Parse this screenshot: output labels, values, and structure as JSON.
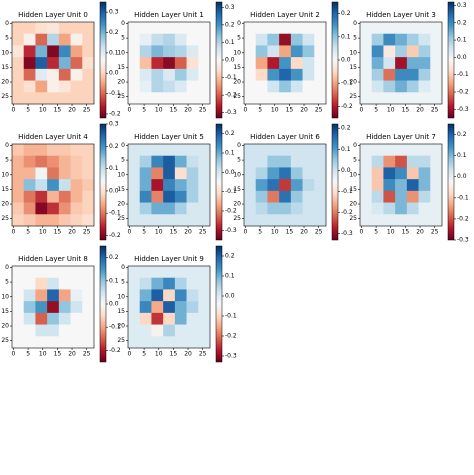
{
  "chart_data": [
    {
      "type": "heatmap",
      "title": "Hidden Layer Unit 0",
      "xlim": [
        -0.5,
        27.5
      ],
      "ylim": [
        27.5,
        -0.5
      ],
      "xticks": [
        0,
        5,
        10,
        15,
        20,
        25
      ],
      "yticks": [
        0,
        5,
        10,
        15,
        20,
        25
      ],
      "clim": [
        -0.22,
        0.35
      ],
      "cticks": [
        -0.2,
        -0.1,
        {
          "value": 0,
          "label": "0.0"
        },
        0.1,
        0.2,
        0.3
      ],
      "colormap": [
        "#67001f",
        "#b2182b",
        "#d6604d",
        "#f4a582",
        "#fddbc7",
        "#f7f7f7",
        "#d1e5f0",
        "#92c5de",
        "#4393c3",
        "#2166ac",
        "#053061"
      ],
      "values": [
        [
          0,
          0,
          0.02,
          0.03,
          0,
          0,
          0
        ],
        [
          0,
          0.05,
          -0.1,
          0.15,
          -0.05,
          0.05,
          0
        ],
        [
          0.03,
          -0.15,
          0.2,
          -0.2,
          0.25,
          -0.05,
          0
        ],
        [
          0,
          -0.2,
          0.3,
          -0.15,
          0.2,
          -0.1,
          0.02
        ],
        [
          0,
          -0.1,
          0.1,
          0.05,
          -0.1,
          0.05,
          0
        ],
        [
          0,
          0.02,
          -0.05,
          0.05,
          0.03,
          0,
          0
        ],
        [
          0,
          0,
          0,
          0,
          0,
          0,
          0
        ]
      ]
    },
    {
      "type": "heatmap",
      "title": "Hidden Layer Unit 1",
      "xlim": [
        -0.5,
        27.5
      ],
      "ylim": [
        27.5,
        -0.5
      ],
      "xticks": [
        0,
        5,
        10,
        15,
        20,
        25
      ],
      "yticks": [
        0,
        5,
        10,
        15,
        20,
        25
      ],
      "clim": [
        -0.33,
        0.33
      ],
      "cticks": [
        -0.3,
        -0.2,
        -0.1,
        {
          "value": 0,
          "label": "0.0"
        },
        0.1,
        0.2,
        0.3
      ],
      "colormap": [
        "#67001f",
        "#b2182b",
        "#d6604d",
        "#f4a582",
        "#fddbc7",
        "#f7f7f7",
        "#d1e5f0",
        "#92c5de",
        "#4393c3",
        "#2166ac",
        "#053061"
      ],
      "values": [
        [
          0,
          0,
          0,
          0,
          0,
          0,
          0
        ],
        [
          0,
          0.03,
          0.08,
          0.1,
          0.05,
          0,
          0
        ],
        [
          0,
          0.1,
          0.15,
          0.12,
          0.1,
          0.05,
          0
        ],
        [
          0,
          -0.1,
          -0.25,
          -0.3,
          -0.2,
          -0.05,
          0
        ],
        [
          0,
          0.05,
          0.1,
          0.05,
          0.12,
          0.05,
          0
        ],
        [
          0,
          0.03,
          0.1,
          0.08,
          0.05,
          0,
          0
        ],
        [
          0,
          0,
          0,
          0,
          0,
          0,
          0
        ]
      ]
    },
    {
      "type": "heatmap",
      "title": "Hidden Layer Unit 2",
      "xlim": [
        -0.5,
        27.5
      ],
      "ylim": [
        27.5,
        -0.5
      ],
      "xticks": [
        0,
        5,
        10,
        15,
        20,
        25
      ],
      "yticks": [
        0,
        5,
        10,
        15,
        20,
        25
      ],
      "clim": [
        -0.25,
        0.25
      ],
      "cticks": [
        -0.2,
        -0.1,
        {
          "value": 0,
          "label": "0.0"
        },
        0.1,
        0.2
      ],
      "colormap": [
        "#67001f",
        "#b2182b",
        "#d6604d",
        "#f4a582",
        "#fddbc7",
        "#f7f7f7",
        "#d1e5f0",
        "#92c5de",
        "#4393c3",
        "#2166ac",
        "#053061"
      ],
      "values": [
        [
          0,
          0,
          0,
          0,
          0,
          0,
          0
        ],
        [
          0,
          0.05,
          0.1,
          -0.22,
          0.1,
          0.05,
          0
        ],
        [
          0,
          0.1,
          0.05,
          -0.1,
          0.15,
          0.1,
          0
        ],
        [
          0,
          -0.1,
          -0.2,
          0.15,
          -0.05,
          0.05,
          0
        ],
        [
          0,
          -0.05,
          0.15,
          0.2,
          0.15,
          0.05,
          0
        ],
        [
          0,
          0,
          0.05,
          0.1,
          0.05,
          0,
          0
        ],
        [
          0,
          0,
          0,
          0,
          0,
          0,
          0
        ]
      ]
    },
    {
      "type": "heatmap",
      "title": "Hidden Layer Unit 3",
      "xlim": [
        -0.5,
        27.5
      ],
      "ylim": [
        27.5,
        -0.5
      ],
      "xticks": [
        0,
        5,
        10,
        15,
        20,
        25
      ],
      "yticks": [
        0,
        5,
        10,
        15,
        20,
        25
      ],
      "clim": [
        -0.35,
        0.32
      ],
      "cticks": [
        -0.3,
        -0.2,
        -0.1,
        {
          "value": 0,
          "label": "0.0"
        },
        0.1,
        0.2,
        0.3
      ],
      "colormap": [
        "#67001f",
        "#b2182b",
        "#d6604d",
        "#f4a582",
        "#fddbc7",
        "#f7f7f7",
        "#d1e5f0",
        "#92c5de",
        "#4393c3",
        "#2166ac",
        "#053061"
      ],
      "values": [
        [
          0,
          0,
          0,
          0,
          0,
          0,
          0
        ],
        [
          0,
          0.1,
          0.2,
          0.15,
          0.1,
          0.05,
          0
        ],
        [
          0,
          0.2,
          -0.05,
          0.1,
          -0.1,
          0.1,
          0
        ],
        [
          0,
          0.15,
          0.05,
          -0.3,
          0.15,
          0.15,
          0
        ],
        [
          0,
          0.1,
          -0.2,
          0.2,
          0.2,
          0.1,
          0
        ],
        [
          0,
          0.05,
          0.1,
          0.15,
          0.1,
          0.03,
          0
        ],
        [
          0,
          0,
          0,
          0,
          0,
          0,
          0
        ]
      ]
    },
    {
      "type": "heatmap",
      "title": "Hidden Layer Unit 4",
      "xlim": [
        -0.5,
        27.5
      ],
      "ylim": [
        27.5,
        -0.5
      ],
      "xticks": [
        0,
        5,
        10,
        15,
        20,
        25
      ],
      "yticks": [
        0,
        5,
        10,
        15,
        20,
        25
      ],
      "clim": [
        -0.22,
        0.3
      ],
      "cticks": [
        -0.2,
        -0.1,
        {
          "value": 0,
          "label": "0.0"
        },
        0.1,
        0.2,
        0.3
      ],
      "colormap": [
        "#67001f",
        "#b2182b",
        "#d6604d",
        "#f4a582",
        "#fddbc7",
        "#f7f7f7",
        "#d1e5f0",
        "#92c5de",
        "#4393c3",
        "#2166ac",
        "#053061"
      ],
      "values": [
        [
          -0.03,
          -0.05,
          -0.05,
          -0.03,
          -0.03,
          -0.02,
          -0.02
        ],
        [
          -0.05,
          -0.08,
          -0.1,
          -0.08,
          -0.05,
          -0.03,
          -0.02
        ],
        [
          -0.05,
          -0.05,
          0.05,
          -0.1,
          -0.05,
          -0.03,
          -0.02
        ],
        [
          -0.05,
          0.15,
          0.1,
          0.2,
          0.1,
          -0.05,
          -0.03
        ],
        [
          -0.05,
          -0.1,
          -0.15,
          -0.05,
          -0.1,
          -0.05,
          -0.02
        ],
        [
          -0.03,
          -0.08,
          -0.2,
          -0.15,
          -0.08,
          -0.03,
          -0.02
        ],
        [
          -0.02,
          -0.03,
          -0.05,
          -0.05,
          -0.03,
          -0.02,
          0
        ]
      ]
    },
    {
      "type": "heatmap",
      "title": "Hidden Layer Unit 5",
      "xlim": [
        -0.5,
        27.5
      ],
      "ylim": [
        27.5,
        -0.5
      ],
      "xticks": [
        0,
        5,
        10,
        15,
        20,
        25
      ],
      "yticks": [
        0,
        5,
        10,
        15,
        20,
        25
      ],
      "clim": [
        -0.35,
        0.25
      ],
      "cticks": [
        -0.3,
        -0.2,
        -0.1,
        {
          "value": 0,
          "label": "0.0"
        },
        0.1,
        0.2
      ],
      "colormap": [
        "#67001f",
        "#b2182b",
        "#d6604d",
        "#f4a582",
        "#fddbc7",
        "#f7f7f7",
        "#d1e5f0",
        "#92c5de",
        "#4393c3",
        "#2166ac",
        "#053061"
      ],
      "values": [
        [
          0,
          0,
          0,
          0,
          0,
          0,
          0
        ],
        [
          0,
          0.05,
          0.15,
          0.2,
          0.1,
          0.02,
          0
        ],
        [
          0,
          0.1,
          -0.2,
          0.2,
          -0.1,
          0.05,
          0
        ],
        [
          0,
          0.1,
          -0.3,
          0.15,
          0.1,
          0.05,
          0
        ],
        [
          0,
          0.15,
          -0.2,
          0.2,
          0.15,
          0.05,
          0
        ],
        [
          0,
          0.05,
          0.1,
          0.1,
          0.05,
          0,
          0
        ],
        [
          0,
          0,
          0,
          0,
          0,
          0,
          0
        ]
      ]
    },
    {
      "type": "heatmap",
      "title": "Hidden Layer Unit 6",
      "xlim": [
        -0.5,
        27.5
      ],
      "ylim": [
        27.5,
        -0.5
      ],
      "xticks": [
        0,
        5,
        10,
        15,
        20,
        25
      ],
      "yticks": [
        0,
        5,
        10,
        15,
        20,
        25
      ],
      "clim": [
        -0.33,
        0.22
      ],
      "cticks": [
        -0.3,
        -0.2,
        -0.1,
        {
          "value": 0,
          "label": "0.0"
        },
        0.1,
        0.2
      ],
      "colormap": [
        "#67001f",
        "#b2182b",
        "#d6604d",
        "#f4a582",
        "#fddbc7",
        "#f7f7f7",
        "#d1e5f0",
        "#92c5de",
        "#4393c3",
        "#2166ac",
        "#053061"
      ],
      "values": [
        [
          0,
          0,
          0,
          0,
          0,
          0,
          0
        ],
        [
          0,
          0,
          0.05,
          0.05,
          0,
          0,
          0
        ],
        [
          0,
          0.03,
          0.1,
          0.15,
          0.05,
          0,
          0
        ],
        [
          0,
          0.1,
          0.15,
          -0.25,
          0.1,
          0.02,
          0
        ],
        [
          0,
          0.05,
          -0.2,
          0.15,
          0.05,
          0,
          0
        ],
        [
          0,
          0.02,
          0.05,
          0.05,
          0.02,
          0,
          0
        ],
        [
          0,
          0,
          0,
          0,
          0,
          0,
          0
        ]
      ]
    },
    {
      "type": "heatmap",
      "title": "Hidden Layer Unit 7",
      "xlim": [
        -0.5,
        27.5
      ],
      "ylim": [
        27.5,
        -0.5
      ],
      "xticks": [
        0,
        5,
        10,
        15,
        20,
        25
      ],
      "yticks": [
        0,
        5,
        10,
        15,
        20,
        25
      ],
      "clim": [
        -0.3,
        0.25
      ],
      "cticks": [
        -0.3,
        -0.2,
        -0.1,
        {
          "value": 0,
          "label": "0.0"
        },
        0.1,
        0.2
      ],
      "colormap": [
        "#67001f",
        "#b2182b",
        "#d6604d",
        "#f4a582",
        "#fddbc7",
        "#f7f7f7",
        "#d1e5f0",
        "#92c5de",
        "#4393c3",
        "#2166ac",
        "#053061"
      ],
      "values": [
        [
          0,
          0,
          0,
          0,
          0,
          0,
          0
        ],
        [
          0,
          0.05,
          -0.15,
          -0.2,
          0.05,
          0.05,
          0
        ],
        [
          0,
          -0.1,
          0.2,
          0.15,
          -0.1,
          0.1,
          0
        ],
        [
          0,
          -0.1,
          0.15,
          0.1,
          0.2,
          0.1,
          0
        ],
        [
          0,
          0.05,
          -0.2,
          0.1,
          -0.15,
          0.05,
          0
        ],
        [
          0,
          0.02,
          0.05,
          0.1,
          0.05,
          0,
          0
        ],
        [
          0,
          0,
          0,
          0,
          0,
          0,
          0
        ]
      ]
    },
    {
      "type": "heatmap",
      "title": "Hidden Layer Unit 8",
      "xlim": [
        -0.5,
        27.5
      ],
      "ylim": [
        27.5,
        -0.5
      ],
      "xticks": [
        0,
        5,
        10,
        15,
        20,
        25
      ],
      "yticks": [
        0,
        5,
        10,
        15,
        20,
        25
      ],
      "clim": [
        -0.25,
        0.25
      ],
      "cticks": [
        -0.2,
        -0.1,
        {
          "value": 0,
          "label": "0.0"
        },
        0.1,
        0.2
      ],
      "colormap": [
        "#67001f",
        "#b2182b",
        "#d6604d",
        "#f4a582",
        "#fddbc7",
        "#f7f7f7",
        "#d1e5f0",
        "#92c5de",
        "#4393c3",
        "#2166ac",
        "#053061"
      ],
      "values": [
        [
          0,
          0,
          0,
          0,
          0,
          0,
          0
        ],
        [
          0,
          0,
          -0.05,
          0.05,
          0,
          0,
          0
        ],
        [
          0,
          0.05,
          -0.1,
          0.2,
          -0.1,
          0.02,
          0
        ],
        [
          0,
          0.1,
          0.15,
          -0.22,
          0.1,
          0.05,
          0
        ],
        [
          0,
          0.05,
          -0.15,
          0.1,
          0.05,
          0,
          0
        ],
        [
          0,
          0,
          0.05,
          0.05,
          0,
          0,
          0
        ],
        [
          0,
          0,
          0,
          0,
          0,
          0,
          0
        ]
      ]
    },
    {
      "type": "heatmap",
      "title": "Hidden Layer Unit 9",
      "xlim": [
        -0.5,
        27.5
      ],
      "ylim": [
        27.5,
        -0.5
      ],
      "xticks": [
        0,
        5,
        10,
        15,
        20,
        25
      ],
      "yticks": [
        0,
        5,
        10,
        15,
        20,
        25
      ],
      "clim": [
        -0.33,
        0.25
      ],
      "cticks": [
        -0.3,
        -0.2,
        -0.1,
        {
          "value": 0,
          "label": "0.0"
        },
        0.1,
        0.2
      ],
      "colormap": [
        "#67001f",
        "#b2182b",
        "#d6604d",
        "#f4a582",
        "#fddbc7",
        "#f7f7f7",
        "#d1e5f0",
        "#92c5de",
        "#4393c3",
        "#2166ac",
        "#053061"
      ],
      "values": [
        [
          0,
          0,
          0,
          0,
          0,
          0,
          0
        ],
        [
          0,
          0.03,
          0.1,
          0.15,
          0.05,
          0,
          0
        ],
        [
          0,
          0.1,
          0.2,
          -0.1,
          0.15,
          0.03,
          0
        ],
        [
          0,
          0.15,
          -0.15,
          0.2,
          0.1,
          0.05,
          0
        ],
        [
          0,
          -0.1,
          -0.25,
          -0.1,
          0.1,
          0,
          0
        ],
        [
          0,
          0,
          -0.05,
          0.05,
          0,
          0,
          0
        ],
        [
          0,
          0,
          0,
          0,
          0,
          0,
          0
        ]
      ]
    }
  ]
}
